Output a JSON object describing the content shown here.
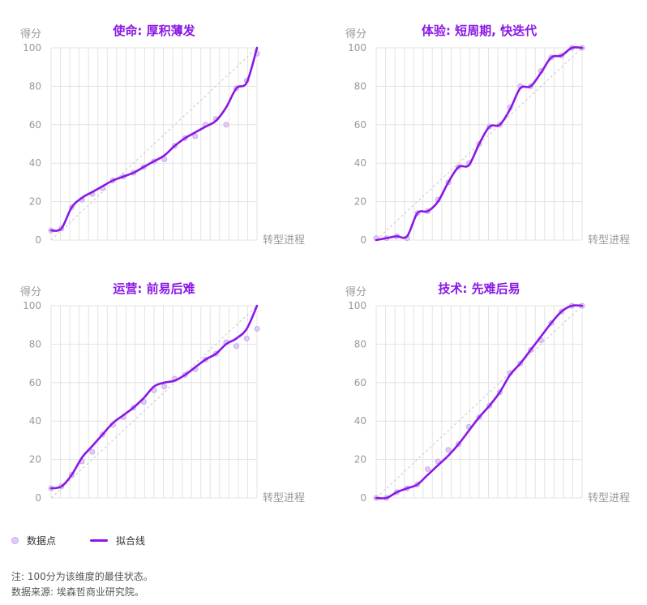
{
  "colors": {
    "accent": "#8a17e6",
    "point_fill": "#e1cdf3",
    "point_stroke": "#c9a9ec",
    "grid": "#e3e3e3",
    "diagonal": "#c8c8c8",
    "axis_text": "#999999"
  },
  "chart_data": [
    {
      "type": "line",
      "title": "使命: 厚积薄发",
      "ylabel": "得分",
      "xlabel": "转型进程",
      "ylim": [
        0,
        100
      ],
      "yticks": [
        0,
        20,
        40,
        60,
        80,
        100
      ],
      "grid": true,
      "series": [
        {
          "kind": "scatter",
          "x": [
            0,
            1,
            2,
            3,
            4,
            5,
            6,
            7,
            8,
            9,
            10,
            11,
            12,
            13,
            14,
            15,
            16,
            17,
            18,
            19,
            20
          ],
          "values": [
            5,
            6,
            17,
            21,
            24,
            27,
            31,
            33,
            35,
            38,
            41,
            42,
            49,
            53,
            54,
            60,
            63,
            60,
            79,
            83,
            97
          ]
        },
        {
          "kind": "line",
          "x": [
            0,
            1,
            2,
            3,
            4,
            5,
            6,
            7,
            8,
            9,
            10,
            11,
            12,
            13,
            14,
            15,
            16,
            17,
            18,
            19,
            20
          ],
          "values": [
            5,
            6,
            17,
            22,
            25,
            28,
            31,
            33,
            35,
            38,
            41,
            44,
            49,
            53,
            56,
            59,
            62,
            69,
            79,
            82,
            100
          ]
        }
      ]
    },
    {
      "type": "line",
      "title": "体验: 短周期, 快迭代",
      "ylabel": "得分",
      "xlabel": "转型进程",
      "ylim": [
        0,
        100
      ],
      "yticks": [
        0,
        20,
        40,
        60,
        80,
        100
      ],
      "grid": true,
      "series": [
        {
          "kind": "scatter",
          "x": [
            0,
            1,
            2,
            3,
            4,
            5,
            6,
            7,
            8,
            9,
            10,
            11,
            12,
            13,
            14,
            15,
            16,
            17,
            18,
            19,
            20
          ],
          "values": [
            1,
            1,
            2,
            1,
            14,
            15,
            21,
            30,
            38,
            40,
            50,
            59,
            60,
            69,
            80,
            80,
            88,
            95,
            96,
            100,
            100
          ]
        },
        {
          "kind": "line",
          "x": [
            0,
            1,
            2,
            3,
            4,
            5,
            6,
            7,
            8,
            9,
            10,
            11,
            12,
            13,
            14,
            15,
            16,
            17,
            18,
            19,
            20
          ],
          "values": [
            0,
            1,
            2,
            2,
            14,
            15,
            20,
            30,
            38,
            39,
            50,
            59,
            60,
            68,
            79,
            80,
            87,
            95,
            96,
            100,
            100
          ]
        }
      ]
    },
    {
      "type": "line",
      "title": "运营: 前易后难",
      "ylabel": "得分",
      "xlabel": "转型进程",
      "ylim": [
        0,
        100
      ],
      "yticks": [
        0,
        20,
        40,
        60,
        80,
        100
      ],
      "grid": true,
      "series": [
        {
          "kind": "scatter",
          "x": [
            0,
            1,
            2,
            3,
            4,
            5,
            6,
            7,
            8,
            9,
            10,
            11,
            12,
            13,
            14,
            15,
            16,
            17,
            18,
            19,
            20
          ],
          "values": [
            5,
            6,
            12,
            19,
            24,
            33,
            38,
            42,
            47,
            50,
            56,
            58,
            62,
            64,
            67,
            72,
            75,
            81,
            79,
            83,
            88
          ]
        },
        {
          "kind": "line",
          "x": [
            0,
            1,
            2,
            3,
            4,
            5,
            6,
            7,
            8,
            9,
            10,
            11,
            12,
            13,
            14,
            15,
            16,
            17,
            18,
            19,
            20
          ],
          "values": [
            5,
            6,
            12,
            21,
            27,
            33,
            39,
            43,
            47,
            52,
            58,
            60,
            61,
            64,
            68,
            72,
            75,
            80,
            83,
            88,
            100
          ]
        }
      ]
    },
    {
      "type": "line",
      "title": "技术: 先难后易",
      "ylabel": "得分",
      "xlabel": "转型进程",
      "ylim": [
        0,
        100
      ],
      "yticks": [
        0,
        20,
        40,
        60,
        80,
        100
      ],
      "grid": true,
      "series": [
        {
          "kind": "scatter",
          "x": [
            0,
            1,
            2,
            3,
            4,
            5,
            6,
            7,
            8,
            9,
            10,
            11,
            12,
            13,
            14,
            15,
            16,
            17,
            18,
            19,
            20
          ],
          "values": [
            0,
            0,
            3,
            5,
            7,
            15,
            19,
            25,
            28,
            37,
            42,
            48,
            55,
            65,
            70,
            77,
            82,
            91,
            97,
            100,
            100
          ]
        },
        {
          "kind": "line",
          "x": [
            0,
            1,
            2,
            3,
            4,
            5,
            6,
            7,
            8,
            9,
            10,
            11,
            12,
            13,
            14,
            15,
            16,
            17,
            18,
            19,
            20
          ],
          "values": [
            0,
            0,
            3,
            5,
            7,
            12,
            17,
            22,
            28,
            35,
            42,
            48,
            55,
            64,
            70,
            77,
            84,
            91,
            97,
            100,
            100
          ]
        }
      ]
    }
  ],
  "legend": {
    "points_label": "数据点",
    "line_label": "拟合线",
    "placement": "bottom-left"
  },
  "notes": {
    "line1": "注: 100分为该维度的最佳状态。",
    "line2": "数据来源: 埃森哲商业研究院。"
  }
}
